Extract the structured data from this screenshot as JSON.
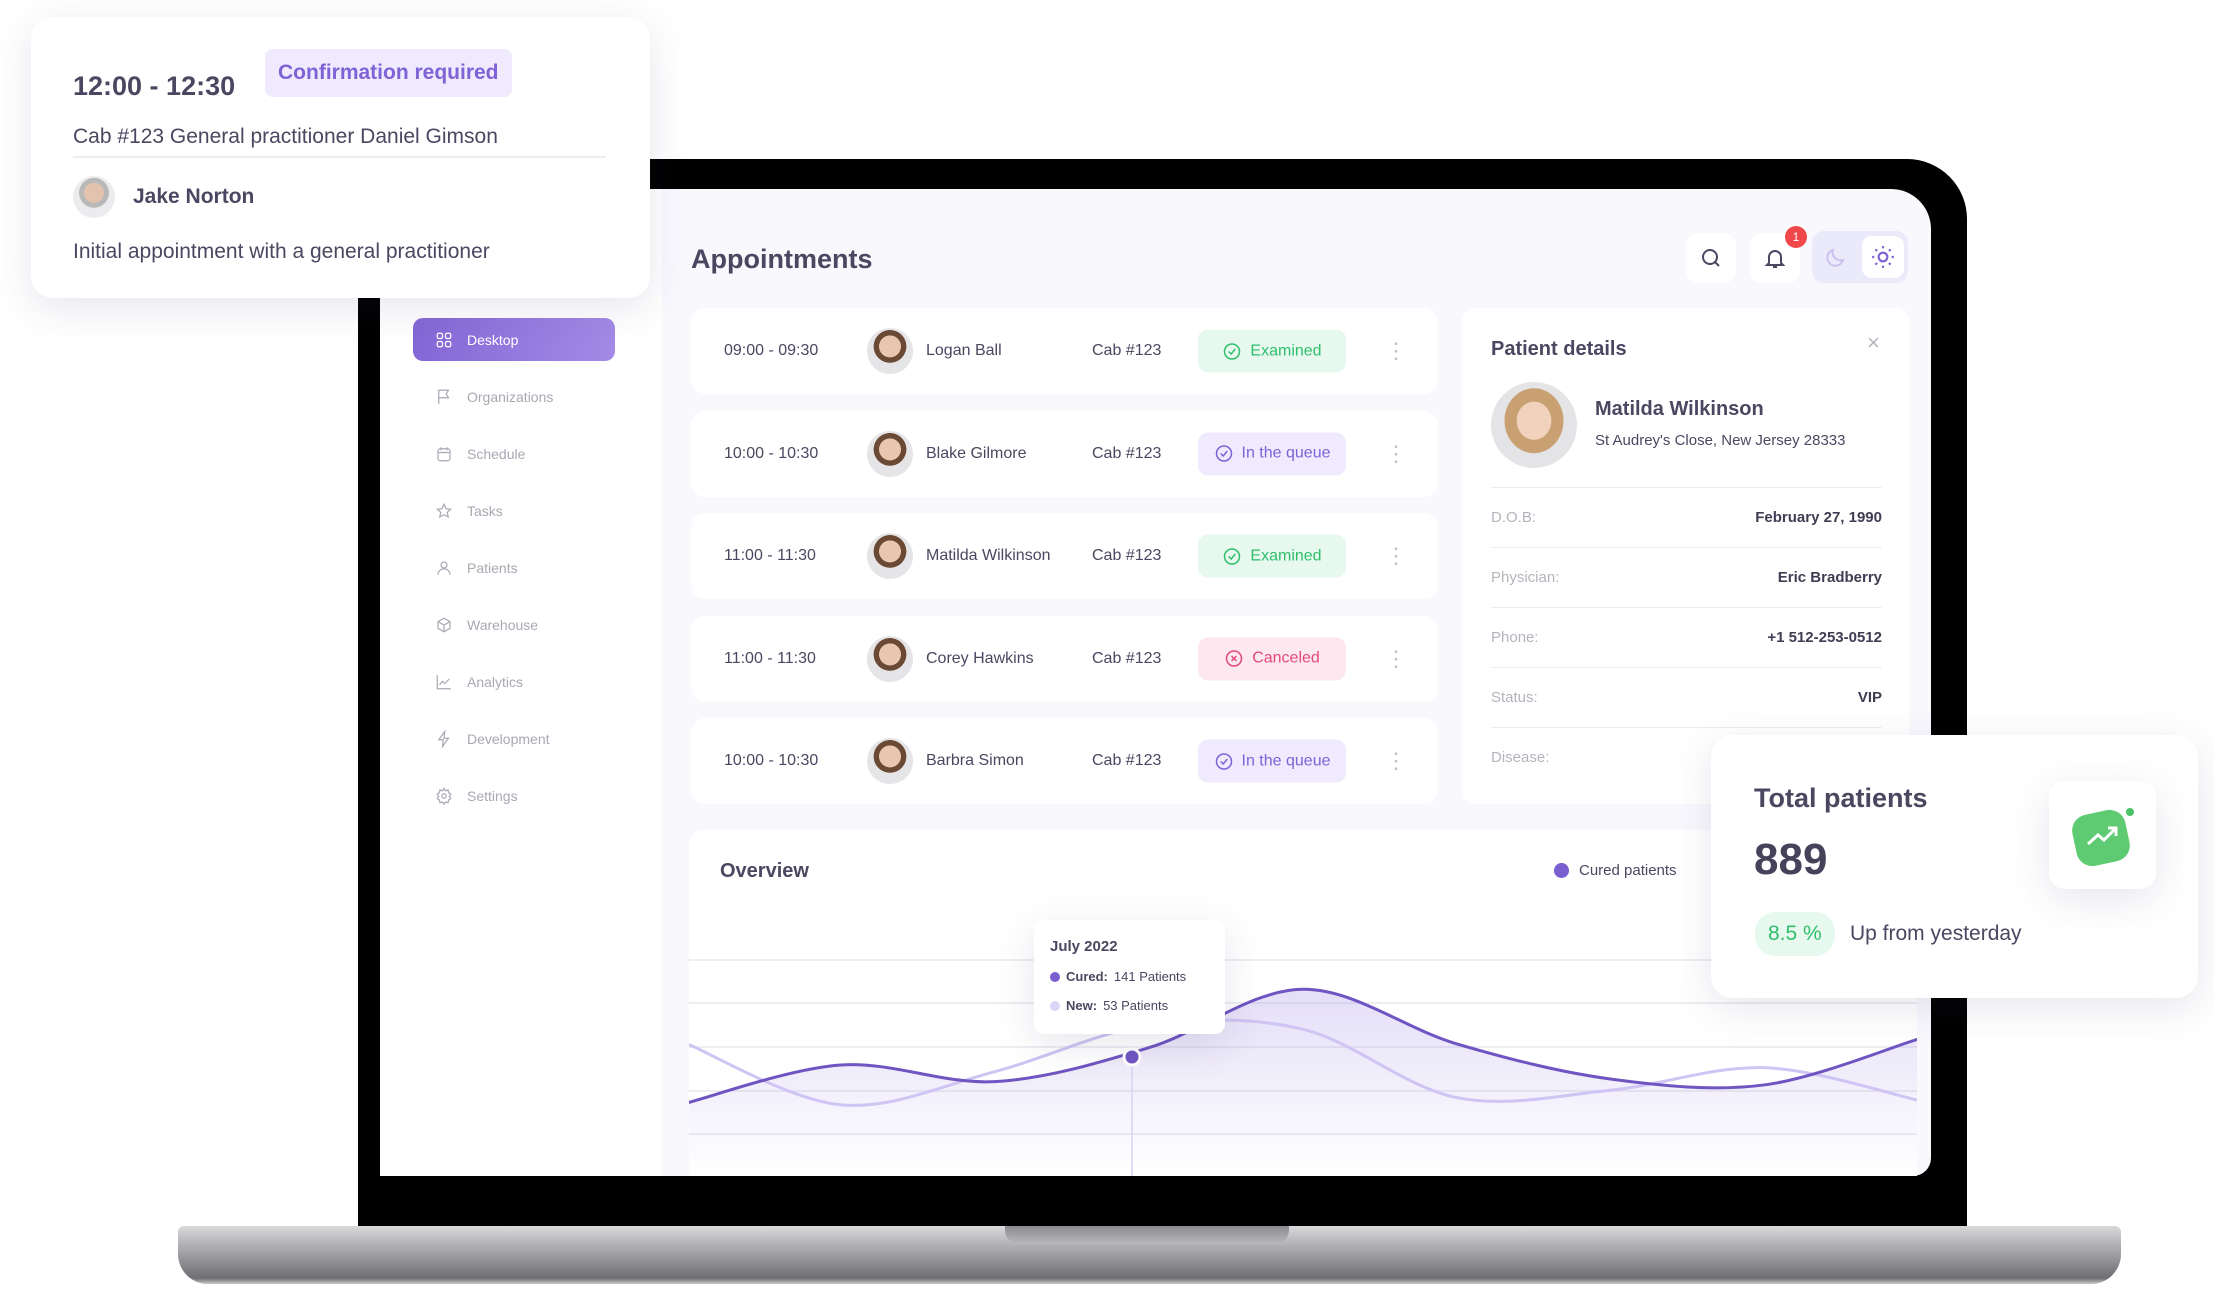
{
  "popup": {
    "time": "12:00 - 12:30",
    "badge": "Confirmation required",
    "details": "Cab #123  General practitioner Daniel Gimson",
    "patient": "Jake Norton",
    "description": "Initial appointment with a general practitioner"
  },
  "sidebar": {
    "items": [
      {
        "label": "Desktop",
        "icon": "grid-icon",
        "active": true
      },
      {
        "label": "Organizations",
        "icon": "flag-icon"
      },
      {
        "label": "Schedule",
        "icon": "calendar-icon"
      },
      {
        "label": "Tasks",
        "icon": "star-icon"
      },
      {
        "label": "Patients",
        "icon": "user-icon"
      },
      {
        "label": "Warehouse",
        "icon": "box-icon"
      },
      {
        "label": "Analytics",
        "icon": "chart-line-icon"
      },
      {
        "label": "Development",
        "icon": "bolt-icon"
      },
      {
        "label": "Settings",
        "icon": "gear-icon"
      }
    ]
  },
  "header": {
    "title": "Appointments",
    "notifications": "1"
  },
  "appointments": [
    {
      "time": "09:00 - 09:30",
      "name": "Logan Ball",
      "cab": "Cab #123",
      "status": "Examined",
      "kind": "examined"
    },
    {
      "time": "10:00 - 10:30",
      "name": "Blake Gilmore",
      "cab": "Cab #123",
      "status": "In the queue",
      "kind": "queue"
    },
    {
      "time": "11:00 - 11:30",
      "name": "Matilda Wilkinson",
      "cab": "Cab #123",
      "status": "Examined",
      "kind": "examined"
    },
    {
      "time": "11:00 - 11:30",
      "name": "Corey Hawkins",
      "cab": "Cab #123",
      "status": "Canceled",
      "kind": "canceled"
    },
    {
      "time": "10:00 - 10:30",
      "name": "Barbra Simon",
      "cab": "Cab #123",
      "status": "In the queue",
      "kind": "queue"
    }
  ],
  "status_colors": {
    "examined": {
      "bg": "#e7f8ee",
      "fg": "#2fbf6c"
    },
    "queue": {
      "bg": "#efeafd",
      "fg": "#7e62d6"
    },
    "canceled": {
      "bg": "#fde8f0",
      "fg": "#e2487f"
    }
  },
  "patient": {
    "title": "Patient details",
    "name": "Matilda Wilkinson",
    "address": "St Audrey's Close, New Jersey 28333",
    "fields": [
      {
        "label": "D.O.B:",
        "value": "February 27, 1990"
      },
      {
        "label": "Physician:",
        "value": "Eric Bradberry"
      },
      {
        "label": "Phone:",
        "value": "+1 512-253-0512"
      },
      {
        "label": "Status:",
        "value": "VIP"
      },
      {
        "label": "Disease:",
        "value": ""
      }
    ]
  },
  "overview": {
    "title": "Overview",
    "legend": "Cured patients",
    "tooltip": {
      "title": "July 2022",
      "cured_label": "Cured:",
      "cured_value": "141 Patients",
      "new_label": "New:",
      "new_value": "53 Patients"
    }
  },
  "chart_data": {
    "type": "area",
    "grid": true,
    "legend": "top-right",
    "series": [
      {
        "name": "Cured patients",
        "color": "#6f55c2",
        "values": [
          71,
          128,
          103,
          154,
          242,
          160,
          107,
          98,
          167
        ]
      },
      {
        "color": "#cfc4f3",
        "values": [
          160,
          68,
          118,
          188,
          182,
          79,
          90,
          124,
          75
        ]
      }
    ]
  },
  "total": {
    "title": "Total patients",
    "value": "889",
    "change": "8.5 %",
    "change_text": "Up from yesterday",
    "accent": "#2fbf6c"
  }
}
